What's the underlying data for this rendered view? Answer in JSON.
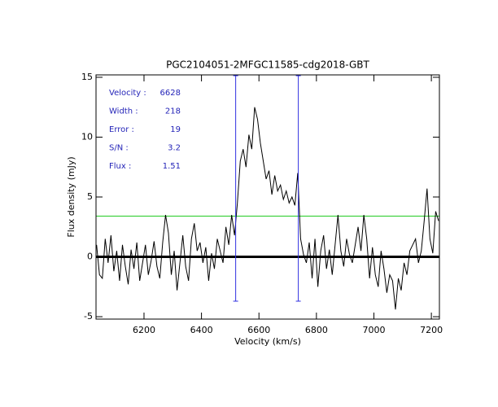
{
  "chart_data": {
    "type": "line",
    "title": "PGC2104051-2MFGC11585-cdg2018-GBT",
    "xlabel": "Velocity (km/s)",
    "ylabel": "Flux density (mJy)",
    "annotations": [
      {
        "label": "Velocity :",
        "value": 6628
      },
      {
        "label": "Width :",
        "value": 218
      },
      {
        "label": "Error :",
        "value": 19
      },
      {
        "label": "S/N :",
        "value": 3.2
      },
      {
        "label": "Flux :",
        "value": 1.51
      }
    ],
    "annotation_color": "#2424b8",
    "window_color": "#3030e0",
    "reference_line": {
      "value": 3.4,
      "color": "#22cc22"
    },
    "color": "#000000",
    "xlim": [
      6033,
      7228
    ],
    "ylim": [
      -5.2,
      15.2
    ],
    "xticks": [
      6200,
      6400,
      6600,
      6800,
      7000,
      7200
    ],
    "yticks": [
      -5,
      0,
      5,
      10,
      15
    ],
    "x": [
      6035,
      6045,
      6055,
      6065,
      6075,
      6085,
      6095,
      6105,
      6115,
      6125,
      6135,
      6145,
      6155,
      6165,
      6175,
      6185,
      6195,
      6205,
      6215,
      6225,
      6235,
      6245,
      6255,
      6265,
      6275,
      6285,
      6295,
      6305,
      6315,
      6325,
      6335,
      6345,
      6355,
      6365,
      6375,
      6385,
      6395,
      6405,
      6415,
      6425,
      6435,
      6445,
      6455,
      6465,
      6475,
      6485,
      6495,
      6505,
      6515,
      6525,
      6535,
      6545,
      6555,
      6565,
      6575,
      6585,
      6595,
      6605,
      6615,
      6625,
      6635,
      6645,
      6655,
      6665,
      6675,
      6685,
      6695,
      6705,
      6715,
      6725,
      6735,
      6745,
      6755,
      6765,
      6775,
      6785,
      6795,
      6805,
      6815,
      6825,
      6835,
      6845,
      6855,
      6865,
      6875,
      6885,
      6895,
      6905,
      6915,
      6925,
      6935,
      6945,
      6955,
      6965,
      6975,
      6985,
      6995,
      7005,
      7015,
      7025,
      7035,
      7045,
      7055,
      7065,
      7075,
      7085,
      7095,
      7105,
      7115,
      7125,
      7135,
      7145,
      7155,
      7165,
      7175,
      7185,
      7195,
      7205,
      7215,
      7225
    ],
    "values": [
      1.0,
      -1.5,
      -1.8,
      1.5,
      -0.5,
      1.8,
      -1.2,
      0.5,
      -2.0,
      1.0,
      -0.8,
      -2.3,
      0.6,
      -1.0,
      1.2,
      -2.0,
      -0.5,
      1.0,
      -1.5,
      -0.3,
      1.3,
      -0.8,
      -1.8,
      1.2,
      3.5,
      2.0,
      -1.5,
      0.5,
      -2.8,
      -0.5,
      1.8,
      -0.8,
      -2.0,
      1.5,
      2.8,
      0.5,
      1.2,
      -0.5,
      0.8,
      -2.0,
      0.3,
      -1.0,
      1.5,
      0.5,
      -0.5,
      2.5,
      1.0,
      3.5,
      1.8,
      4.5,
      8.0,
      9.0,
      7.5,
      10.2,
      9.0,
      12.5,
      11.5,
      9.5,
      8.0,
      6.5,
      7.2,
      5.2,
      6.8,
      5.5,
      6.0,
      4.8,
      5.5,
      4.5,
      5.0,
      4.3,
      7.0,
      1.5,
      0.2,
      -0.5,
      1.2,
      -1.8,
      1.5,
      -2.5,
      0.5,
      1.8,
      -1.0,
      0.6,
      -1.5,
      1.0,
      3.5,
      0.5,
      -0.8,
      1.5,
      0.2,
      -0.5,
      1.0,
      2.5,
      0.5,
      3.5,
      1.5,
      -1.8,
      0.8,
      -1.5,
      -2.5,
      0.5,
      -1.0,
      -3.0,
      -1.5,
      -2.0,
      -4.4,
      -1.8,
      -2.8,
      -0.5,
      -1.5,
      0.5,
      1.0,
      1.5,
      -0.5,
      0.5,
      3.0,
      5.7,
      1.5,
      0.3,
      3.8,
      3.0
    ]
  }
}
